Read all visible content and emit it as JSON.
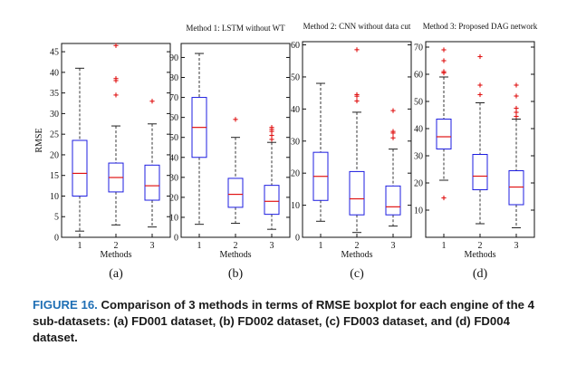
{
  "chart_data": [
    {
      "type": "box",
      "panel_label": "(a)",
      "title": "",
      "xlabel": "Methods",
      "ylabel": "RMSE",
      "categories": [
        "1",
        "2",
        "3"
      ],
      "ylim": [
        0,
        47
      ],
      "yticks": [
        0,
        5,
        10,
        15,
        20,
        25,
        30,
        35,
        40,
        45
      ],
      "boxes": [
        {
          "whisker_low": 1.5,
          "q1": 10,
          "median": 15.5,
          "q3": 23.5,
          "whisker_high": 41,
          "outliers": []
        },
        {
          "whisker_low": 3,
          "q1": 11,
          "median": 14.5,
          "q3": 18,
          "whisker_high": 27,
          "outliers": [
            34.5,
            38,
            38.5,
            46.5
          ]
        },
        {
          "whisker_low": 2.5,
          "q1": 9,
          "median": 12.5,
          "q3": 17.5,
          "whisker_high": 27.5,
          "outliers": [
            33
          ]
        }
      ]
    },
    {
      "type": "box",
      "panel_label": "(b)",
      "title": "Method 1: LSTM without WT",
      "xlabel": "Methods",
      "ylabel": "",
      "categories": [
        "1",
        "2",
        "3"
      ],
      "ylim": [
        0,
        97
      ],
      "yticks": [
        0,
        10,
        20,
        30,
        40,
        50,
        60,
        70,
        80,
        90
      ],
      "boxes": [
        {
          "whisker_low": 6.5,
          "q1": 40,
          "median": 55,
          "q3": 70,
          "whisker_high": 92,
          "outliers": []
        },
        {
          "whisker_low": 7,
          "q1": 15,
          "median": 21.5,
          "q3": 29.5,
          "whisker_high": 50,
          "outliers": [
            59
          ]
        },
        {
          "whisker_low": 4,
          "q1": 11.5,
          "median": 18,
          "q3": 26,
          "whisker_high": 47.5,
          "outliers": [
            49,
            51,
            53,
            54,
            55
          ]
        }
      ]
    },
    {
      "type": "box",
      "panel_label": "(c)",
      "title": "Method 2: CNN without data cut",
      "xlabel": "Methods",
      "ylabel": "",
      "categories": [
        "1",
        "2",
        "3"
      ],
      "ylim": [
        0,
        61
      ],
      "yticks": [
        0,
        10,
        20,
        30,
        40,
        50,
        60
      ],
      "boxes": [
        {
          "whisker_low": 5,
          "q1": 11.5,
          "median": 19,
          "q3": 26.5,
          "whisker_high": 48,
          "outliers": []
        },
        {
          "whisker_low": 1.5,
          "q1": 7,
          "median": 12,
          "q3": 20.5,
          "whisker_high": 39,
          "outliers": [
            42.5,
            44,
            44.5,
            58.5
          ]
        },
        {
          "whisker_low": 3.5,
          "q1": 7,
          "median": 9.5,
          "q3": 16,
          "whisker_high": 27.5,
          "outliers": [
            31,
            32.5,
            33,
            39.5
          ]
        }
      ]
    },
    {
      "type": "box",
      "panel_label": "(d)",
      "title": "Method 3: Proposed DAG network",
      "xlabel": "Methods",
      "ylabel": "",
      "categories": [
        "1",
        "2",
        "3"
      ],
      "ylim": [
        0,
        72
      ],
      "yticks": [
        10,
        20,
        30,
        40,
        50,
        60,
        70
      ],
      "boxes": [
        {
          "whisker_low": 21,
          "q1": 32.5,
          "median": 37,
          "q3": 43.5,
          "whisker_high": 59,
          "outliers": [
            14.5,
            60.5,
            61,
            65,
            69
          ]
        },
        {
          "whisker_low": 5,
          "q1": 17.5,
          "median": 22.5,
          "q3": 30.5,
          "whisker_high": 49.5,
          "outliers": [
            52.5,
            56,
            66.5
          ]
        },
        {
          "whisker_low": 3.5,
          "q1": 12,
          "median": 18.5,
          "q3": 24.5,
          "whisker_high": 43.5,
          "outliers": [
            44.5,
            46,
            47.5,
            52,
            56
          ]
        }
      ]
    }
  ],
  "caption": {
    "lead": "FIGURE 16.",
    "text": " Comparison of 3 methods in terms of RMSE boxplot for each engine of the 4 sub-datasets: (a) FD001 dataset, (b) FD002 dataset, (c) FD003 dataset, and (d) FD004 dataset."
  },
  "colors": {
    "box": "#1d1de0",
    "median": "#e01515",
    "outlier": "#e01515",
    "whisker": "#222222"
  }
}
